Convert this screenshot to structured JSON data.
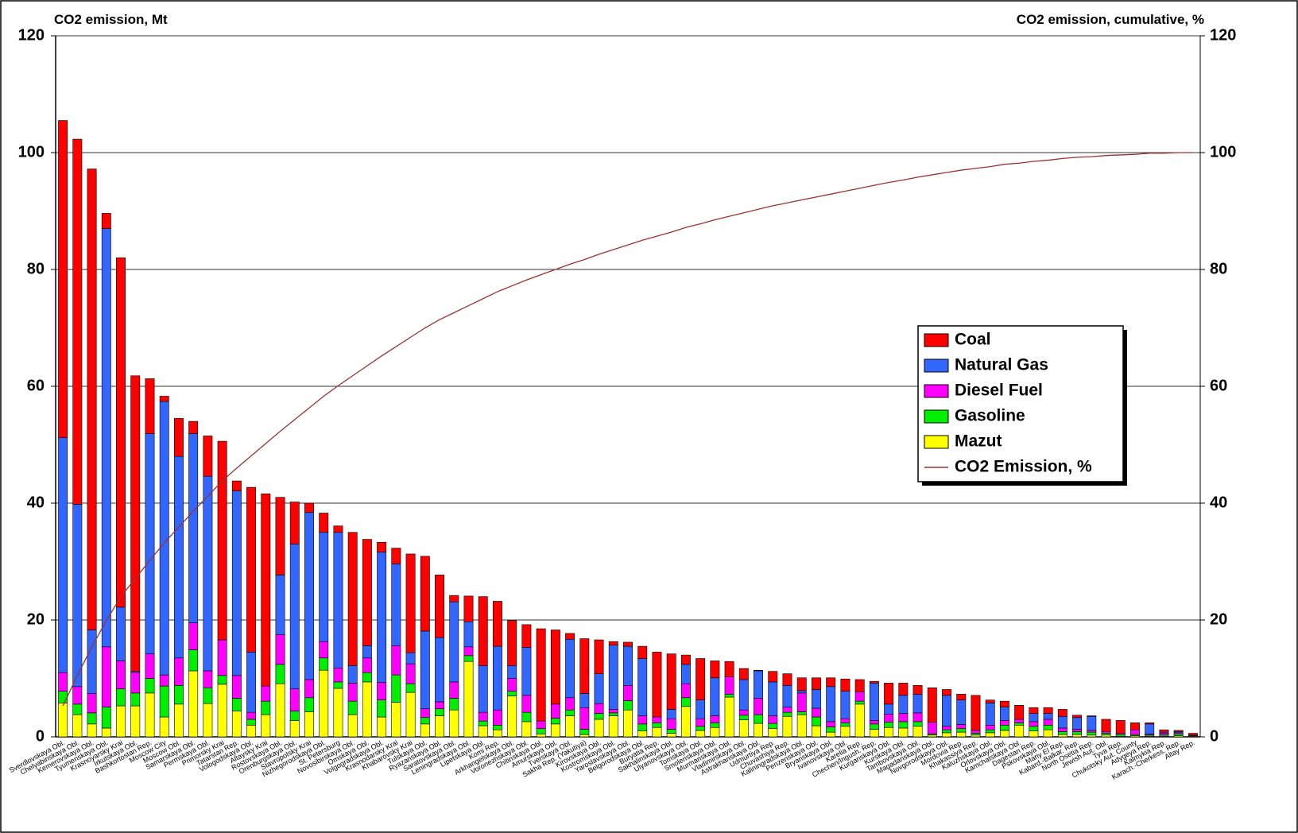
{
  "chart_data": {
    "type": "stacked-bar-line",
    "y_title": "CO2 emission, Mt",
    "y2_title": "CO2 emission, cumulative, %",
    "categories": [
      "Sverdlovskaya Obl.",
      "Chelyabinskaya Obl.",
      "Kemerovskaya Obl.",
      "Tyumenskaya Obl.",
      "Krasnoyarsky Krai",
      "Irkutskaya Obl.",
      "Bashkortostan Rep.",
      "Moscow City",
      "Moscow Obl.",
      "Samarskaya Obl.",
      "Permskaya Obl.",
      "Primorsky Krai",
      "Tatarstan Rep.",
      "Vologodskaya Obl.",
      "Altaysky Krai",
      "Rostovskaya Obl.",
      "Orenburgskaya Obl.",
      "Stavropolsky Krai",
      "Nizhegorodskaya Obl.",
      "St. Petersburg",
      "Novosibirskaya Obl.",
      "Omskaya Obl.",
      "Volgogradskaya Obl.",
      "Krasnodarsky Krai",
      "Khabarovsky Krai",
      "Tulskaya Obl.",
      "Ryazanskaya Obl.",
      "Saratovskaya Obl.",
      "Leningradskaya Obl.",
      "Lipetskaya Obl.",
      "Komi Rep.",
      "Arkhangelskaya Obl.",
      "Voronezhskaya Obl.",
      "Chitinskaya Obl.",
      "Amurskaya Obl.",
      "Tverskaya Obl.",
      "Sakha Rep. (Yakutiya)",
      "Kirovskaya Obl.",
      "Kostromskaya Obl.",
      "Yaroslavskaya Obl.",
      "Belgorodskaya Obl.",
      "Buryatia Rep.",
      "Sakhalinskaya Obl.",
      "Ulyanovskaya Obl.",
      "Tomskaya Obl.",
      "Smolenskaya Obl.",
      "Murmanskaya Obl.",
      "Vladimirskaya Obl.",
      "Astrakhanskaya Obl.",
      "Udmurtiya Rep.",
      "Chuvashiya Rep.",
      "Kaliningradskaya Obl.",
      "Penzenskaya Obl.",
      "Bryanskaya Obl.",
      "Ivanovskaya Obl.",
      "Karelia Rep.",
      "Chechen/Ingush. Rep.",
      "Kurganskaya Obl.",
      "Kurskaya Obl.",
      "Tambovskaya Obl.",
      "Magadanskaya Obl.",
      "Novgorodskaya Obl.",
      "Mordovia Rep.",
      "Khakassiya Rep.",
      "Kaluzhskaya Obl.",
      "Orlovskaya Obl.",
      "Kamchatskaya Obl.",
      "Dagestan Rep.",
      "Pskovskaya Obl.",
      "Mariy El Rep.",
      "Kabard.-Balkar. Rep.",
      "North Osetia Rep.",
      "Jewish Aut. Obl.",
      "Tyva Rep.",
      "Chukotsky Aut. County",
      "Adygeya Rep.",
      "Kalmykia Rep.",
      "Karach.-Cherkess. Rep.",
      "Altay Rep."
    ],
    "series": [
      {
        "name": "Coal",
        "color": "#ff0000",
        "values": [
          54.3,
          62.5,
          78.9,
          2.6,
          59.8,
          50.6,
          9.4,
          0.9,
          6.5,
          2.1,
          6.9,
          34.0,
          1.7,
          28.2,
          32.9,
          13.3,
          7.2,
          1.6,
          3.3,
          1.1,
          22.8,
          18.2,
          1.7,
          2.7,
          16.9,
          12.8,
          10.7,
          1.1,
          4.4,
          11.8,
          7.7,
          7.7,
          3.9,
          15.8,
          12.7,
          1.0,
          9.4,
          5.8,
          0.6,
          0.7,
          2.1,
          11.1,
          9.5,
          1.6,
          7.1,
          2.9,
          2.6,
          1.9,
          0.1,
          1.8,
          2.0,
          2.2,
          2.0,
          1.5,
          2.1,
          2.1,
          0.3,
          3.6,
          2.1,
          1.5,
          5.9,
          1.0,
          1.0,
          6.0,
          0.5,
          1.0,
          2.4,
          1.0,
          1.0,
          1.2,
          0.4,
          0.1,
          2.1,
          2.2,
          1.2,
          0.2,
          0.4,
          0.2,
          0.3
        ]
      },
      {
        "name": "Natural Gas",
        "color": "#3366ff",
        "values": [
          40.2,
          31.2,
          10.9,
          71.6,
          9.2,
          0.2,
          37.7,
          46.8,
          34.5,
          32.4,
          33.3,
          0,
          31.6,
          10.3,
          0,
          10.2,
          24.8,
          28.6,
          18.7,
          23.2,
          3.0,
          2.1,
          22.3,
          14.0,
          1.9,
          13.3,
          11,
          13.7,
          4.3,
          8,
          10.9,
          2.2,
          8.2,
          0,
          0,
          10,
          2.4,
          5.1,
          11,
          6.7,
          9.8,
          0,
          1.6,
          3.3,
          3.2,
          6.5,
          0,
          5.2,
          4.7,
          5.8,
          3.7,
          0.4,
          3.2,
          6,
          4.7,
          0,
          6.4,
          1.7,
          3.1,
          3.2,
          0,
          5.3,
          4.2,
          0,
          3.8,
          2.3,
          0,
          1.4,
          1,
          2,
          2,
          2.4,
          0,
          0,
          0,
          1.7,
          0.2,
          0.2,
          0
        ]
      },
      {
        "name": "Diesel Fuel",
        "color": "#ff00ff",
        "values": [
          3.2,
          3.0,
          3.3,
          10.3,
          4.8,
          3.5,
          4.2,
          1.9,
          4.7,
          4.6,
          2.9,
          6.1,
          3.9,
          1.2,
          2.6,
          5.1,
          3.8,
          3.1,
          2.8,
          2.4,
          3.1,
          2.5,
          3.0,
          5.0,
          3.4,
          1.5,
          1.2,
          2.8,
          1.5,
          1.5,
          2.6,
          2.2,
          2.9,
          1.3,
          2.4,
          2.1,
          3.7,
          1.7,
          0.6,
          2.6,
          1.4,
          1,
          1.8,
          2.4,
          1.3,
          1.2,
          3,
          0.9,
          2.8,
          1.3,
          0.9,
          3.2,
          1.5,
          0.9,
          0.7,
          1.6,
          0.6,
          1.4,
          1.4,
          1.5,
          2,
          0.6,
          0.7,
          0.5,
          0.8,
          0.8,
          0.6,
          0.8,
          1,
          0.6,
          0.4,
          0.3,
          0.3,
          0.2,
          0.8,
          0.2,
          0.3,
          0.2,
          0.1
        ]
      },
      {
        "name": "Gasoline",
        "color": "#00ee00",
        "values": [
          2.0,
          1.8,
          1.9,
          3.6,
          2.9,
          2.2,
          2.5,
          5.3,
          3.2,
          3.6,
          2.7,
          1.5,
          2.2,
          1.0,
          2.3,
          3.3,
          1.6,
          2.4,
          2.1,
          1.1,
          2.3,
          1.6,
          2.9,
          4.7,
          1.5,
          1.1,
          1.2,
          2,
          1,
          0.8,
          0.8,
          0.8,
          1.6,
          0.9,
          1,
          1,
          0.9,
          1,
          0.5,
          1.6,
          1.2,
          0.8,
          0.7,
          1.5,
          0.7,
          0.8,
          0.5,
          0.8,
          1.5,
          0.9,
          0.7,
          0.5,
          1.5,
          0.9,
          0.6,
          0.5,
          0.9,
          0.9,
          1.1,
          0.8,
          0.2,
          0.5,
          0.6,
          0.3,
          0.5,
          0.9,
          0.4,
          0.8,
          0.8,
          0.5,
          0.5,
          0.5,
          0.3,
          0.3,
          0.2,
          0.2,
          0.2,
          0.3,
          0.1
        ]
      },
      {
        "name": "Mazut",
        "color": "#ffff00",
        "values": [
          5.8,
          3.8,
          2.2,
          1.5,
          5.3,
          5.3,
          7.5,
          3.4,
          5.6,
          11.3,
          5.7,
          9,
          4.4,
          2.0,
          3.8,
          9.1,
          2.8,
          4.3,
          11.4,
          8.3,
          3.8,
          9.4,
          3.4,
          5.9,
          7.6,
          2.2,
          3.6,
          4.6,
          12.9,
          1.9,
          1.2,
          7,
          2.6,
          0.5,
          2.2,
          3.6,
          0.4,
          3,
          3.6,
          4.6,
          1,
          1.6,
          0.6,
          5.2,
          1.1,
          1.6,
          6.8,
          2.9,
          2.3,
          1.4,
          3.5,
          3.8,
          1.9,
          0.8,
          1.8,
          5.6,
          1.3,
          1.6,
          1.5,
          1.8,
          0.3,
          0.7,
          0.8,
          0.3,
          0.7,
          1.1,
          2,
          1,
          1.2,
          0.4,
          0.4,
          0.3,
          0.3,
          0.1,
          0.2,
          0.1,
          0.1,
          0.2,
          0.1
        ]
      },
      {
        "name": "CO2 Emission, %",
        "color": "#993333",
        "axis": "y2",
        "type": "line",
        "values": [
          5.3,
          10.5,
          15.4,
          19.9,
          24.0,
          27.1,
          30.2,
          33.2,
          35.9,
          38.6,
          41.2,
          43.8,
          46.0,
          48.1,
          50.2,
          52.3,
          54.3,
          56.3,
          58.3,
          60.1,
          61.8,
          63.5,
          65.2,
          66.8,
          68.4,
          70.0,
          71.4,
          72.6,
          73.8,
          75.0,
          76.2,
          77.2,
          78.2,
          79.1,
          80.0,
          80.9,
          81.7,
          82.6,
          83.4,
          84.2,
          85.0,
          85.7,
          86.4,
          87.2,
          87.8,
          88.5,
          89.1,
          89.7,
          90.3,
          90.9,
          91.4,
          91.9,
          92.4,
          92.9,
          93.4,
          93.9,
          94.4,
          94.9,
          95.3,
          95.8,
          96.2,
          96.6,
          97.0,
          97.3,
          97.6,
          98.0,
          98.2,
          98.5,
          98.7,
          99.0,
          99.2,
          99.3,
          99.5,
          99.6,
          99.7,
          99.9,
          99.9,
          100.0,
          100
        ]
      }
    ],
    "ylim": [
      0,
      120
    ],
    "yticks": [
      0,
      20,
      40,
      60,
      80,
      100,
      120
    ],
    "y2lim": [
      0,
      120
    ],
    "y2ticks": [
      0,
      20,
      40,
      60,
      80,
      100,
      120
    ],
    "grid": true
  }
}
